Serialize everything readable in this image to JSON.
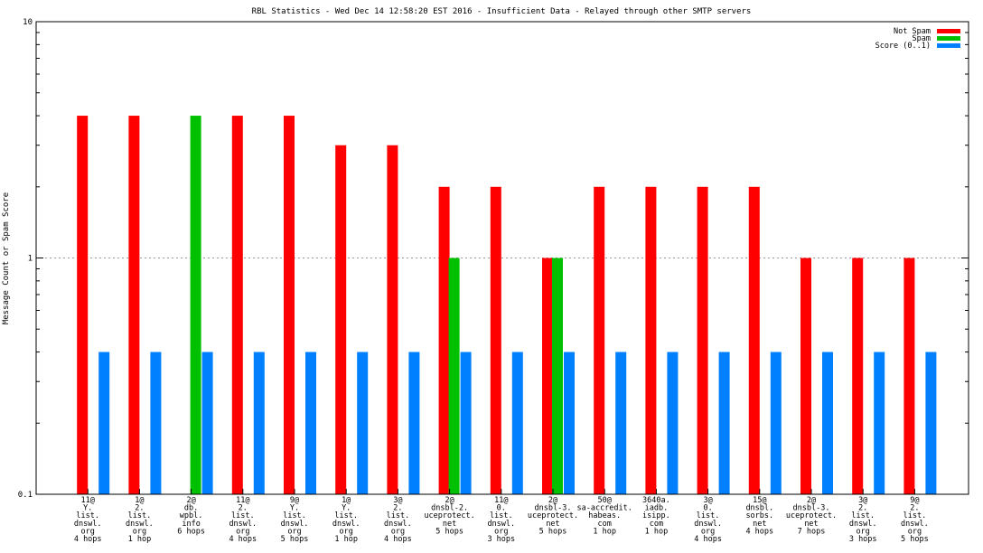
{
  "chart_data": {
    "type": "bar",
    "title": "RBL Statistics - Wed Dec 14 12:58:20 EST 2016 - Insufficient Data - Relayed through other SMTP servers",
    "ylabel": "Message Count or Spam Score",
    "xlabel": "",
    "y_scale": "log",
    "ylim": [
      0.1,
      10
    ],
    "y_ticks": [
      "0.1",
      "1",
      "10"
    ],
    "grid": "horizontal dashed at 1",
    "legend_position": "top-right",
    "categories": [
      [
        "11@",
        "Y.",
        "list.",
        "dnswl.",
        "org",
        "4 hops"
      ],
      [
        "1@",
        "2.",
        "list.",
        "dnswl.",
        "org",
        "1 hop"
      ],
      [
        "2@",
        "db.",
        "wpbl.",
        "info",
        "6 hops"
      ],
      [
        "11@",
        "2.",
        "list.",
        "dnswl.",
        "org",
        "4 hops"
      ],
      [
        "9@",
        "Y.",
        "list.",
        "dnswl.",
        "org",
        "5 hops"
      ],
      [
        "1@",
        "Y.",
        "list.",
        "dnswl.",
        "org",
        "1 hop"
      ],
      [
        "3@",
        "2.",
        "list.",
        "dnswl.",
        "org",
        "4 hops"
      ],
      [
        "2@",
        "dnsbl-2.",
        "uceprotect.",
        "net",
        "5 hops"
      ],
      [
        "11@",
        "0.",
        "list.",
        "dnswl.",
        "org",
        "3 hops"
      ],
      [
        "2@",
        "dnsbl-3.",
        "uceprotect.",
        "net",
        "5 hops"
      ],
      [
        "50@",
        "sa-accredit.",
        "habeas.",
        "com",
        "1 hop"
      ],
      [
        "3640a.",
        "iadb.",
        "isipp.",
        "com",
        "1 hop"
      ],
      [
        "3@",
        "0.",
        "list.",
        "dnswl.",
        "org",
        "4 hops"
      ],
      [
        "15@",
        "dnsbl.",
        "sorbs.",
        "net",
        "4 hops"
      ],
      [
        "2@",
        "dnsbl-3.",
        "uceprotect.",
        "net",
        "7 hops"
      ],
      [
        "3@",
        "2.",
        "list.",
        "dnswl.",
        "org",
        "3 hops"
      ],
      [
        "9@",
        "2.",
        "list.",
        "dnswl.",
        "org",
        "5 hops"
      ]
    ],
    "series": [
      {
        "name": "Not Spam",
        "color": "#ff0000",
        "values": [
          4,
          4,
          null,
          4,
          4,
          3,
          3,
          2,
          2,
          1,
          2,
          2,
          2,
          2,
          1,
          1,
          1
        ]
      },
      {
        "name": "Spam",
        "color": "#00c000",
        "values": [
          null,
          null,
          4,
          null,
          null,
          null,
          null,
          1,
          null,
          1,
          null,
          null,
          null,
          null,
          null,
          null,
          null
        ]
      },
      {
        "name": "Score (0..1)",
        "color": "#0080ff",
        "values": [
          0.4,
          0.4,
          0.4,
          0.4,
          0.4,
          0.4,
          0.4,
          0.4,
          0.4,
          0.4,
          0.4,
          0.4,
          0.4,
          0.4,
          0.4,
          0.4,
          0.4
        ]
      }
    ]
  }
}
